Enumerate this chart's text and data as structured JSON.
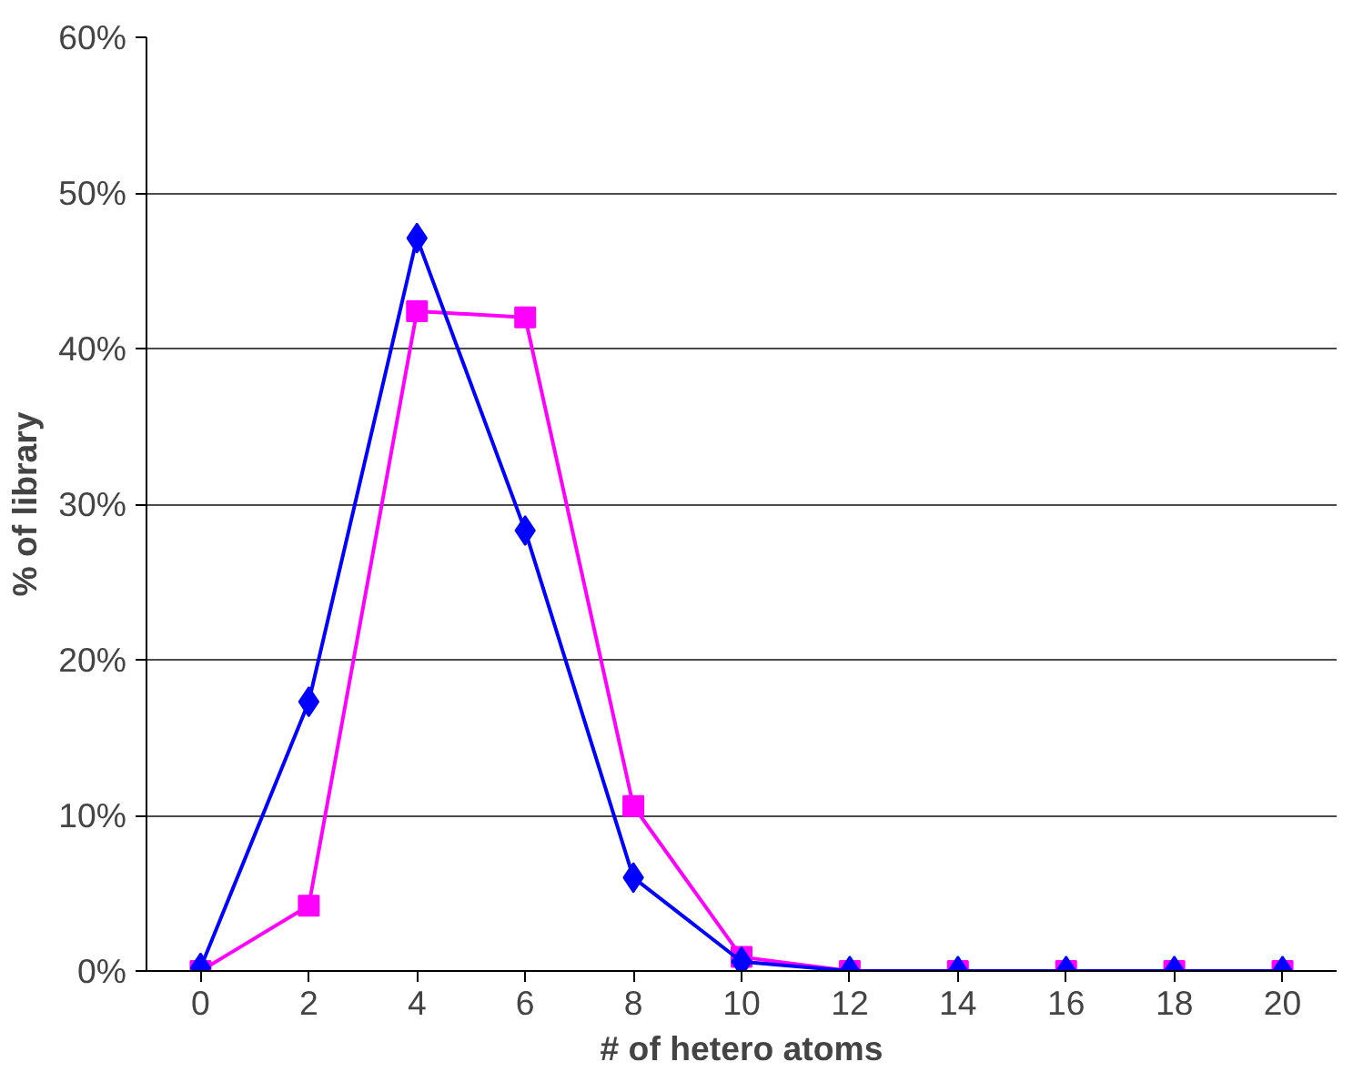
{
  "chart_data": {
    "type": "line",
    "xlabel": "# of hetero atoms",
    "ylabel": "% of library",
    "categories": [
      "0",
      "2",
      "4",
      "6",
      "8",
      "10",
      "12",
      "14",
      "16",
      "18",
      "20"
    ],
    "series": [
      {
        "color": "#ff00ff",
        "marker": "square",
        "values": [
          0,
          4.2,
          42.4,
          42.0,
          10.6,
          0.9,
          0,
          0,
          0,
          0,
          0
        ]
      },
      {
        "color": "#0000ff",
        "marker": "diamond",
        "values": [
          0.2,
          17.3,
          47.1,
          28.3,
          6.0,
          0.6,
          0,
          0,
          0,
          0,
          0
        ]
      }
    ],
    "ylim": [
      0,
      60
    ],
    "yticks": [
      {
        "value": 0,
        "label": "0%"
      },
      {
        "value": 10,
        "label": "10%"
      },
      {
        "value": 20,
        "label": "20%"
      },
      {
        "value": 30,
        "label": "30%"
      },
      {
        "value": 40,
        "label": "40%"
      },
      {
        "value": 50,
        "label": "50%"
      },
      {
        "value": 60,
        "label": "60%"
      }
    ],
    "grid": "y",
    "line_style": "solid"
  }
}
